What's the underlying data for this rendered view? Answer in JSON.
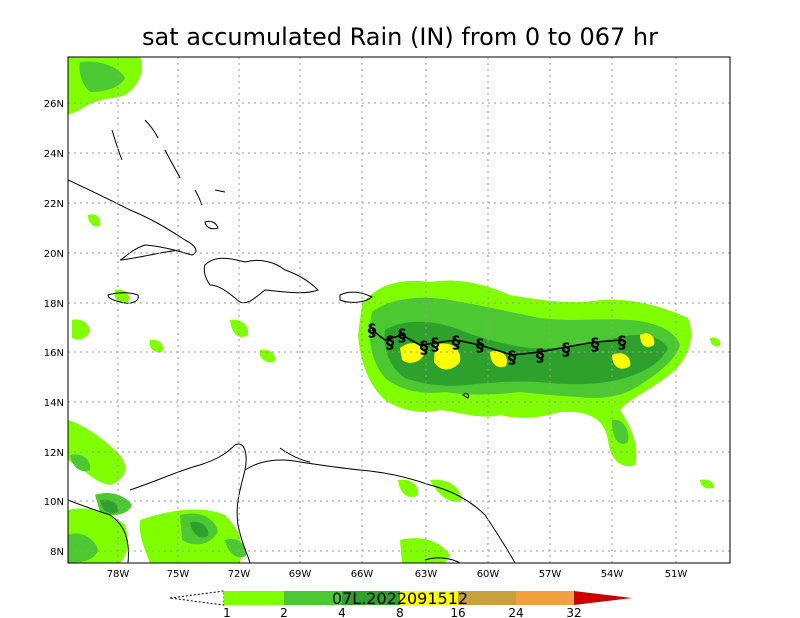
{
  "title": "sat accumulated Rain (IN) from 0 to 067 hr",
  "storm_id": "07L.2022091512",
  "axes": {
    "x_labels": [
      "78W",
      "75W",
      "72W",
      "69W",
      "66W",
      "63W",
      "60W",
      "57W",
      "54W",
      "51W"
    ],
    "y_labels": [
      "26N",
      "24N",
      "22N",
      "20N",
      "18N",
      "16N",
      "14N",
      "12N",
      "10N",
      "8N"
    ]
  },
  "colorbar": {
    "labels": [
      "1",
      "2",
      "4",
      "8",
      "16",
      "24",
      "32"
    ],
    "colors": [
      "#ffffff",
      "#80ff00",
      "#4cc832",
      "#2ea02c",
      "#c8a03c",
      "#f0a03c",
      "#c80000"
    ]
  },
  "track_symbol": "§",
  "colors": {
    "light_green": "#80ff00",
    "mid_green": "#4cc832",
    "dark_green": "#2ea02c",
    "yellow": "#ffff00"
  }
}
